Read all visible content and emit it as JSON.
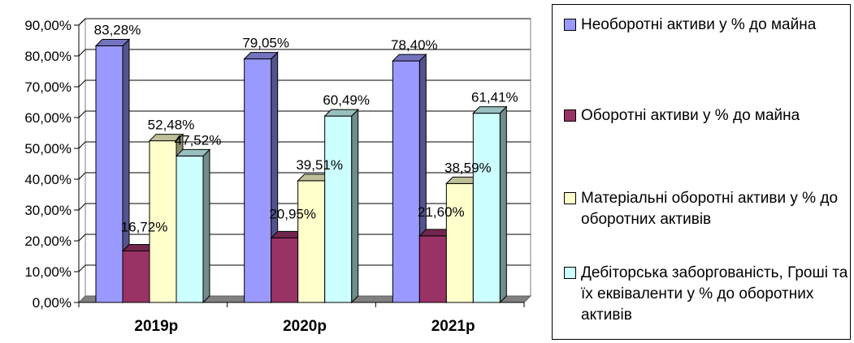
{
  "chart_data": {
    "type": "bar",
    "categories": [
      "2019р",
      "2020р",
      "2021р"
    ],
    "series": [
      {
        "name": "Необоротні активи у % до майна",
        "values": [
          83.28,
          79.05,
          78.4
        ],
        "labels": [
          "83,28%",
          "79,05%",
          "78,40%"
        ],
        "color": "#9999ff"
      },
      {
        "name": "Оборотні активи у % до майна",
        "values": [
          16.72,
          20.95,
          21.6
        ],
        "labels": [
          "16,72%",
          "20,95%",
          "21,60%"
        ],
        "color": "#993366"
      },
      {
        "name": "Матеріальні оборотні активи у % до оборотних активів",
        "values": [
          52.48,
          39.51,
          38.59
        ],
        "labels": [
          "52,48%",
          "39,51%",
          "38,59%"
        ],
        "color": "#ffffcc"
      },
      {
        "name": "Дебіторська заборгованість, Гроші та їх еквіваленти у % до оборотних активів",
        "values": [
          47.52,
          60.49,
          61.41
        ],
        "labels": [
          "47,52%",
          "60,49%",
          "61,41%"
        ],
        "color": "#ccffff"
      }
    ],
    "y_ticks": [
      0,
      10,
      20,
      30,
      40,
      50,
      60,
      70,
      80,
      90
    ],
    "y_tick_labels": [
      "0,00%",
      "10,00%",
      "20,00%",
      "30,00%",
      "40,00%",
      "50,00%",
      "60,00%",
      "70,00%",
      "80,00%",
      "90,00%"
    ],
    "ylim": [
      0,
      90
    ],
    "grid": true,
    "legend_position": "right",
    "bar_style": "3d-clustered"
  }
}
